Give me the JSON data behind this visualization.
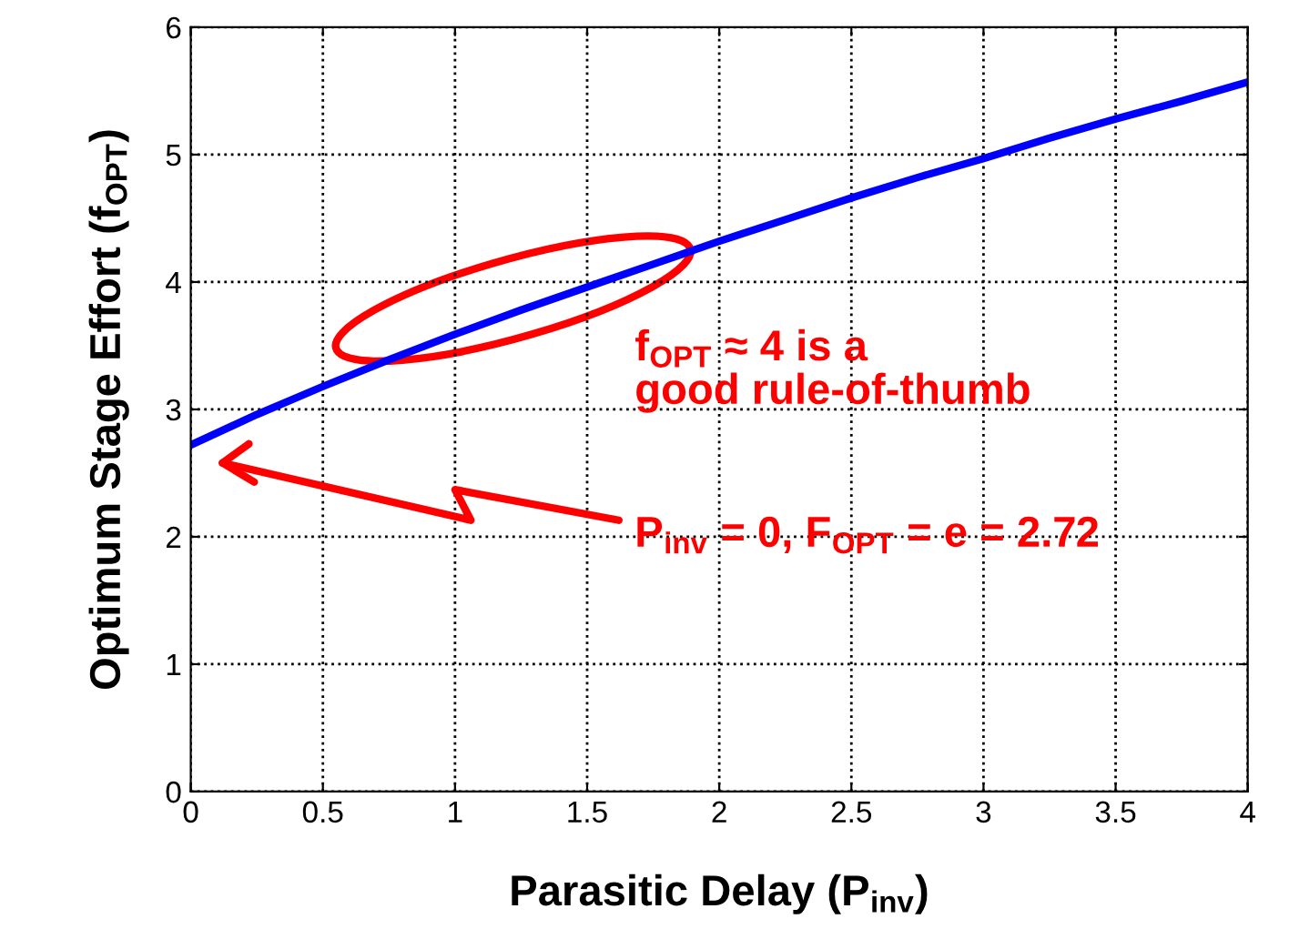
{
  "chart_data": {
    "type": "line",
    "xlabel": "Parasitic Delay (P$_{inv}$)",
    "ylabel": "Optimum Stage Effort (f$_{OPT}$)",
    "x": [
      0,
      0.25,
      0.5,
      0.75,
      1,
      1.25,
      1.5,
      1.75,
      2,
      2.25,
      2.5,
      2.75,
      3,
      3.25,
      3.5,
      3.75,
      4
    ],
    "series": [
      {
        "color": "#0000ff",
        "values": [
          2.72,
          2.96,
          3.18,
          3.39,
          3.59,
          3.78,
          3.96,
          4.14,
          4.32,
          4.49,
          4.66,
          4.82,
          4.97,
          5.13,
          5.28,
          5.42,
          5.57
        ]
      }
    ],
    "xlim": [
      0,
      4
    ],
    "ylim": [
      0,
      6
    ],
    "xticks": [
      0,
      0.5,
      1,
      1.5,
      2,
      2.5,
      3,
      3.5,
      4
    ],
    "yticks": [
      0,
      1,
      2,
      3,
      4,
      5,
      6
    ],
    "grid": true,
    "line_style": "solid",
    "marker": "none",
    "annotations": [
      "f$_{OPT}$ ≈ 4 is a\ngood rule-of-thumb",
      "P$_{inv}$ = 0, F$_{OPT}$ = e = 2.72"
    ]
  }
}
